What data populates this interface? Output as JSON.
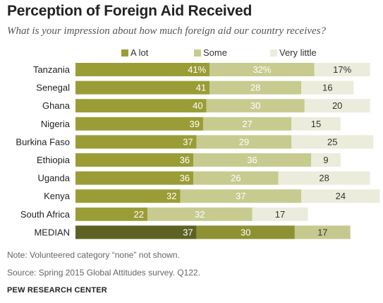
{
  "title": "Perception of Foreign Aid Received",
  "subtitle": "What is your impression about how much foreign aid our country receives?",
  "note": "Note: Volunteered category “none” not shown.",
  "source": "Source: Spring 2015 Global Attitudes survey. Q122.",
  "org": "PEW RESEARCH CENTER",
  "colors": {
    "a_lot": "#9a9d36",
    "some": "#c7cb8f",
    "very_little": "#ebecdb",
    "median_a_lot": "#5d6224",
    "median_some": "#8e9132",
    "median_very_little": "#c6c98e",
    "label_light": "#ffffff",
    "label_dark": "#333333"
  },
  "chart_data": {
    "type": "bar",
    "orientation": "horizontal",
    "stacked": true,
    "legend_position": "top",
    "categories": [
      "Tanzania",
      "Senegal",
      "Ghana",
      "Nigeria",
      "Burkina Faso",
      "Ethiopia",
      "Uganda",
      "Kenya",
      "South Africa",
      "MEDIAN"
    ],
    "series": [
      {
        "name": "A lot",
        "values": [
          41,
          41,
          40,
          39,
          37,
          36,
          36,
          32,
          22,
          37
        ],
        "labels": [
          "41%",
          "41",
          "40",
          "39",
          "37",
          "36",
          "36",
          "32",
          "22",
          "37"
        ]
      },
      {
        "name": "Some",
        "values": [
          32,
          28,
          30,
          27,
          29,
          36,
          26,
          37,
          32,
          30
        ],
        "labels": [
          "32%",
          "28",
          "30",
          "27",
          "29",
          "36",
          "26",
          "37",
          "32",
          "30"
        ]
      },
      {
        "name": "Very little",
        "values": [
          17,
          16,
          20,
          15,
          25,
          9,
          28,
          24,
          17,
          17
        ],
        "labels": [
          "17%",
          "16",
          "20",
          "15",
          "25",
          "9",
          "28",
          "24",
          "17",
          "17"
        ]
      }
    ]
  }
}
